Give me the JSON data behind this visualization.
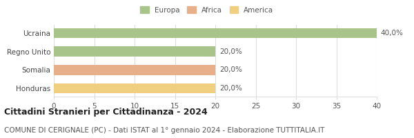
{
  "categories": [
    "Honduras",
    "Somalia",
    "Regno Unito",
    "Ucraina"
  ],
  "values": [
    20.0,
    20.0,
    20.0,
    40.0
  ],
  "bar_colors": [
    "#f0d080",
    "#e8b08a",
    "#a8c48a",
    "#a8c48a"
  ],
  "legend_items": [
    {
      "label": "Europa",
      "color": "#a8c48a"
    },
    {
      "label": "Africa",
      "color": "#e8b08a"
    },
    {
      "label": "America",
      "color": "#f0d080"
    }
  ],
  "bar_labels": [
    "20,0%",
    "20,0%",
    "20,0%",
    "40,0%"
  ],
  "xlim": [
    0,
    40
  ],
  "xticks": [
    0,
    5,
    10,
    15,
    20,
    25,
    30,
    35,
    40
  ],
  "title_bold": "Cittadini Stranieri per Cittadinanza - 2024",
  "subtitle": "COMUNE DI CERIGNALE (PC) - Dati ISTAT al 1° gennaio 2024 - Elaborazione TUTTITALIA.IT",
  "background_color": "#ffffff",
  "grid_color": "#dddddd",
  "bar_height": 0.55,
  "label_fontsize": 7.5,
  "tick_fontsize": 7.5,
  "title_fontsize": 9,
  "subtitle_fontsize": 7.5
}
